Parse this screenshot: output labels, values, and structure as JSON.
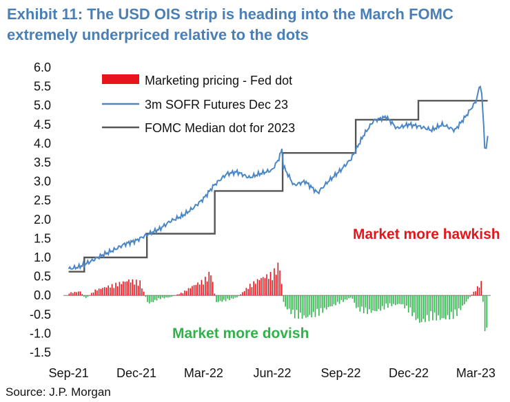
{
  "title": "Exhibit 11: The USD OIS strip is heading into the March FOMC extremely underpriced relative to the dots",
  "source": "Source: J.P. Morgan",
  "chart_data": {
    "type": "line",
    "title": "Exhibit 11: The USD OIS strip is heading into the March FOMC extremely underpriced relative to the dots",
    "xlabel": "",
    "ylabel": "",
    "ylim": [
      -1.5,
      6.0
    ],
    "y_ticks": [
      "6.0",
      "5.5",
      "5.0",
      "4.5",
      "4.0",
      "3.5",
      "3.0",
      "2.5",
      "2.0",
      "1.5",
      "1.0",
      "0.5",
      "0.0",
      "-0.5",
      "-1.0",
      "-1.5"
    ],
    "x_ticks": [
      "Sep-21",
      "Dec-21",
      "Mar-22",
      "Jun-22",
      "Sep-22",
      "Dec-22",
      "Mar-23"
    ],
    "grid": false,
    "legend_position": "top-left",
    "annotations": [
      "Market more hawkish",
      "Market more dovish"
    ],
    "colors": {
      "bars_positive": "#e8141b",
      "bars_negative": "#2fb24a",
      "sofr": "#4a86c5",
      "dot": "#555555",
      "hawkish": "#e8141b",
      "dovish": "#2fb24a"
    },
    "series": [
      {
        "name": "Marketing pricing - Fed dot",
        "type": "bar",
        "x": [
          "2021-09-01",
          "2021-09-16",
          "2021-09-23",
          "2021-10-05",
          "2021-10-20",
          "2021-11-05",
          "2021-11-20",
          "2021-12-05",
          "2021-12-16",
          "2021-12-31",
          "2022-01-15",
          "2022-02-01",
          "2022-02-15",
          "2022-03-01",
          "2022-03-10",
          "2022-03-17",
          "2022-03-31",
          "2022-04-15",
          "2022-05-01",
          "2022-05-15",
          "2022-06-01",
          "2022-06-10",
          "2022-06-16",
          "2022-06-30",
          "2022-07-15",
          "2022-08-01",
          "2022-08-15",
          "2022-09-01",
          "2022-09-15",
          "2022-09-22",
          "2022-10-05",
          "2022-10-20",
          "2022-11-05",
          "2022-11-20",
          "2022-12-05",
          "2022-12-15",
          "2022-12-31",
          "2023-01-15",
          "2023-02-01",
          "2023-02-15",
          "2023-03-01",
          "2023-03-08",
          "2023-03-13",
          "2023-03-17"
        ],
        "values": [
          0.08,
          0.12,
          -0.1,
          0.15,
          0.25,
          0.35,
          0.45,
          0.4,
          -0.25,
          -0.1,
          -0.05,
          0.1,
          0.3,
          0.45,
          0.7,
          -0.2,
          -0.15,
          -0.05,
          0.3,
          0.5,
          0.65,
          0.95,
          -0.3,
          -0.6,
          -0.65,
          -0.55,
          -0.35,
          -0.2,
          -0.05,
          -0.4,
          -0.5,
          -0.45,
          -0.3,
          -0.25,
          -0.55,
          -0.8,
          -0.65,
          -0.7,
          -0.6,
          -0.2,
          0.2,
          0.4,
          -1.15,
          -0.85
        ]
      },
      {
        "name": "3m SOFR Futures Dec 23",
        "type": "line",
        "x": [
          "2021-09-01",
          "2021-09-15",
          "2021-10-01",
          "2021-10-15",
          "2021-11-01",
          "2021-11-15",
          "2021-12-01",
          "2021-12-15",
          "2022-01-01",
          "2022-01-15",
          "2022-02-01",
          "2022-02-15",
          "2022-03-01",
          "2022-03-15",
          "2022-04-01",
          "2022-04-15",
          "2022-05-01",
          "2022-05-15",
          "2022-06-01",
          "2022-06-10",
          "2022-06-14",
          "2022-06-16",
          "2022-06-30",
          "2022-07-15",
          "2022-08-01",
          "2022-08-15",
          "2022-09-01",
          "2022-09-15",
          "2022-10-01",
          "2022-10-15",
          "2022-11-01",
          "2022-11-15",
          "2022-12-01",
          "2022-12-15",
          "2023-01-01",
          "2023-01-15",
          "2023-02-01",
          "2023-02-15",
          "2023-03-01",
          "2023-03-07",
          "2023-03-09",
          "2023-03-13",
          "2023-03-15",
          "2023-03-17"
        ],
        "values": [
          0.7,
          0.75,
          0.9,
          1.05,
          1.2,
          1.35,
          1.45,
          1.6,
          1.75,
          1.95,
          2.1,
          2.3,
          2.55,
          2.9,
          3.2,
          3.25,
          3.1,
          3.2,
          3.3,
          3.6,
          3.85,
          3.4,
          2.9,
          3.0,
          2.7,
          3.0,
          3.3,
          3.6,
          4.2,
          4.6,
          4.7,
          4.4,
          4.5,
          4.45,
          4.35,
          4.5,
          4.35,
          4.7,
          5.1,
          5.55,
          5.3,
          3.95,
          3.85,
          4.2
        ]
      },
      {
        "name": "FOMC Median dot for 2023",
        "type": "step",
        "x": [
          "2021-09-01",
          "2021-09-22",
          "2021-12-15",
          "2022-03-16",
          "2022-06-15",
          "2022-09-21",
          "2022-12-14",
          "2023-03-17"
        ],
        "values": [
          0.625,
          1.0,
          1.625,
          2.75,
          3.75,
          4.625,
          5.125,
          5.125
        ]
      }
    ]
  }
}
